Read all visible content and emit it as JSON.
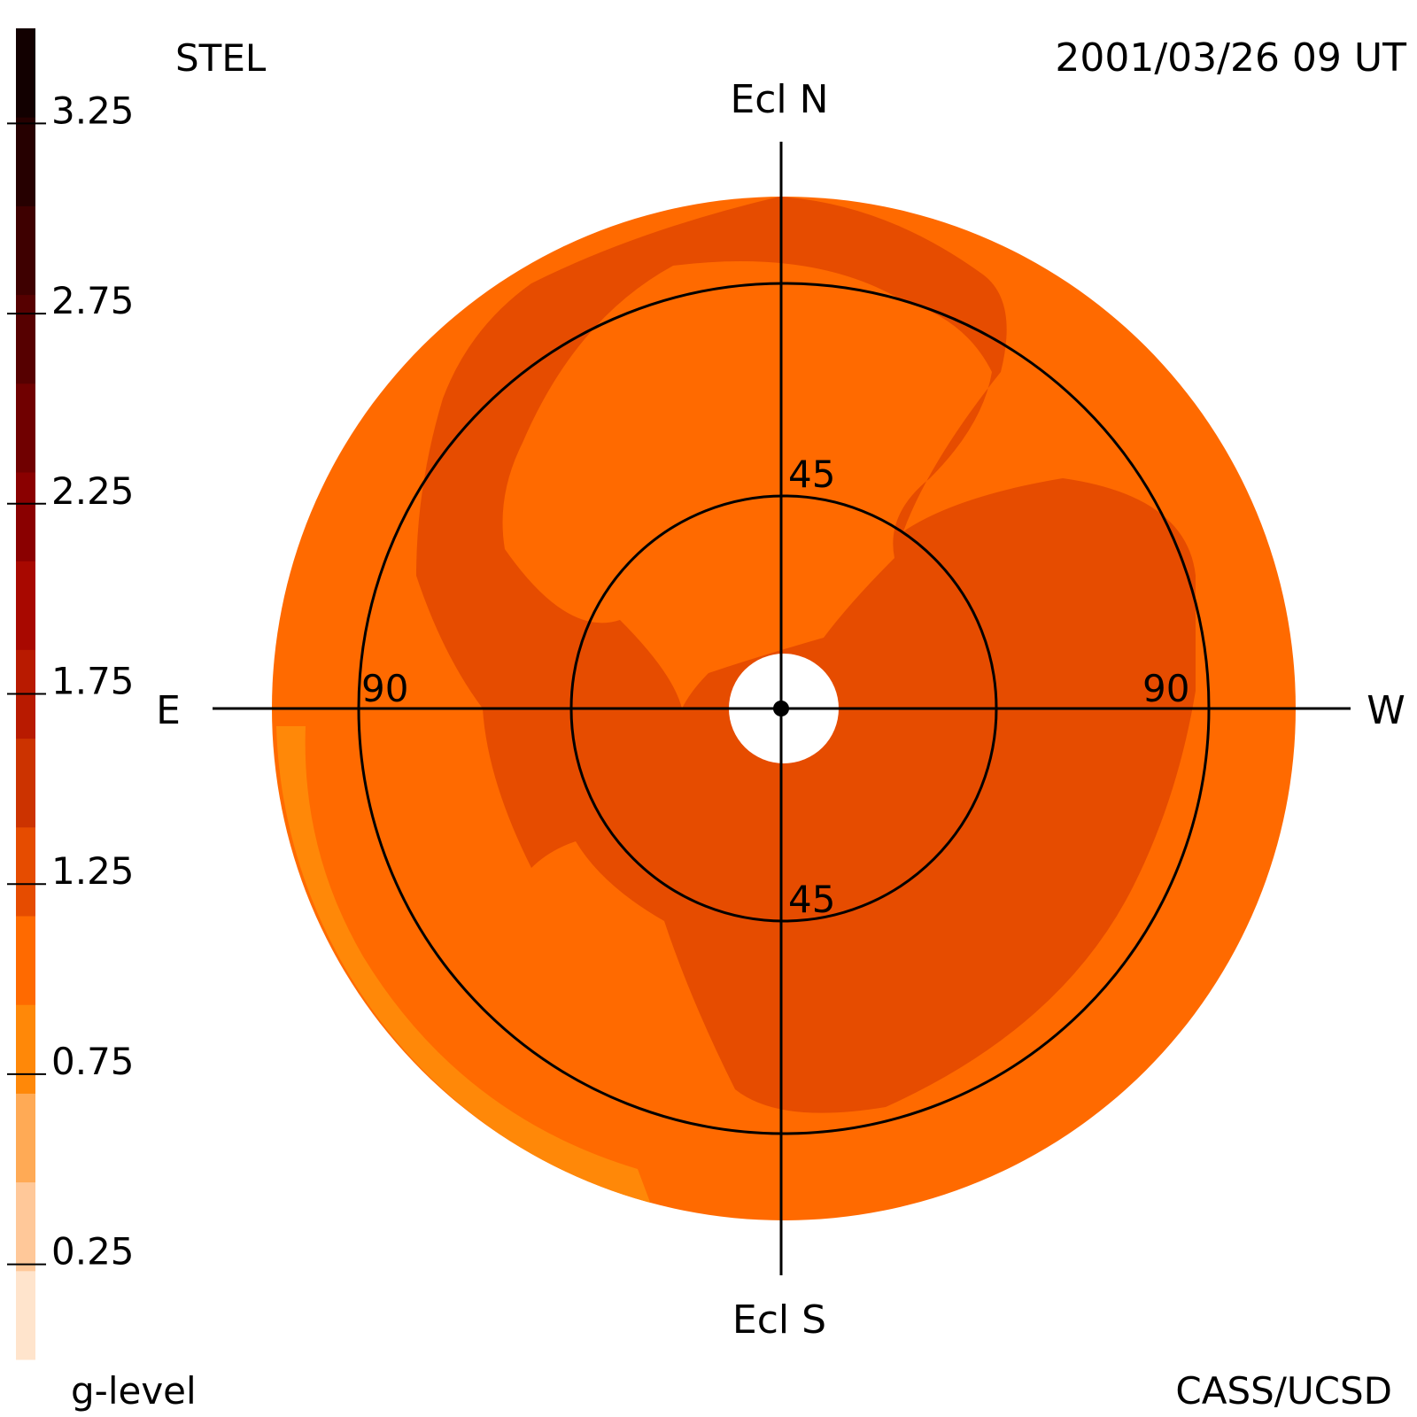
{
  "header": {
    "instrument": "STEL",
    "timestamp": "2001/03/26 09 UT"
  },
  "footer": {
    "credit": "CASS/UCSD"
  },
  "colorbar": {
    "label": "g-level",
    "tick_labels": [
      "3.25",
      "2.75",
      "2.25",
      "1.75",
      "1.25",
      "0.75",
      "0.25"
    ],
    "tick_values": [
      3.25,
      2.75,
      2.25,
      1.75,
      1.25,
      0.75,
      0.25
    ],
    "range": [
      0,
      3.5
    ],
    "colors": [
      "#ffe4cc",
      "#ffc899",
      "#ffaa55",
      "#ff8808",
      "#ff6a00",
      "#e64c00",
      "#cc3300",
      "#b81a00",
      "#a80800",
      "#8a0000",
      "#700000",
      "#560000",
      "#3e0000",
      "#260000",
      "#120000"
    ]
  },
  "axes": {
    "north": "Ecl N",
    "south": "Ecl S",
    "east": "E",
    "west": "W"
  },
  "rings": {
    "inner_label": "45",
    "outer_label": "90"
  },
  "chart_data": {
    "type": "heatmap",
    "projection": "sky map centered on the Sun, elongation rings at 45 and 90 degrees",
    "title": "",
    "variable": "g-level",
    "regions": [
      {
        "region": "outer field",
        "value": 0.9,
        "color": "#ff6a00"
      },
      {
        "region": "central ring band and north-west lobe",
        "value": 1.1,
        "color": "#e64c00"
      },
      {
        "region": "south-east limb",
        "value": 0.6,
        "color": "#ff8808"
      }
    ],
    "occulted_center": true,
    "elongation_rings_deg": [
      45,
      90
    ]
  }
}
